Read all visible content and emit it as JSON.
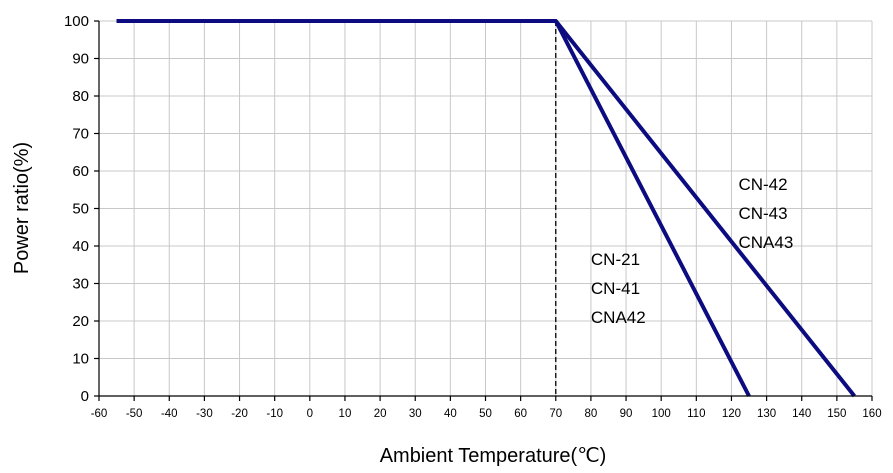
{
  "chart_data": {
    "type": "line",
    "title": "",
    "xlabel": "Ambient Temperature(℃)",
    "ylabel": "Power ratio(%)",
    "xlim": [
      -60,
      160
    ],
    "ylim": [
      0,
      100
    ],
    "xticks": [
      "-60",
      "-50",
      "-40",
      "-30",
      "-20",
      "-10",
      "0",
      "10",
      "20",
      "30",
      "40",
      "50",
      "60",
      "70",
      "80",
      "90",
      "100",
      "110",
      "120",
      "130",
      "140",
      "150",
      "160"
    ],
    "yticks": [
      "0",
      "10",
      "20",
      "30",
      "40",
      "50",
      "60",
      "70",
      "80",
      "90",
      "100"
    ],
    "grid": true,
    "reference_line": {
      "x": 70,
      "style": "dashed"
    },
    "series": [
      {
        "x": [
          -55,
          70,
          125
        ],
        "y": [
          100,
          100,
          0
        ]
      },
      {
        "x": [
          -55,
          70,
          155
        ],
        "y": [
          100,
          100,
          0
        ]
      }
    ],
    "annotations": [
      {
        "lines": [
          "CN-21",
          "CN-41",
          "CNA42"
        ],
        "x": 80,
        "y": 35
      },
      {
        "lines": [
          "CN-42",
          "CN-43",
          "CNA43"
        ],
        "x": 122,
        "y": 55
      }
    ],
    "series_color": "#0c0c80",
    "grid_color": "#c8c8c8"
  }
}
